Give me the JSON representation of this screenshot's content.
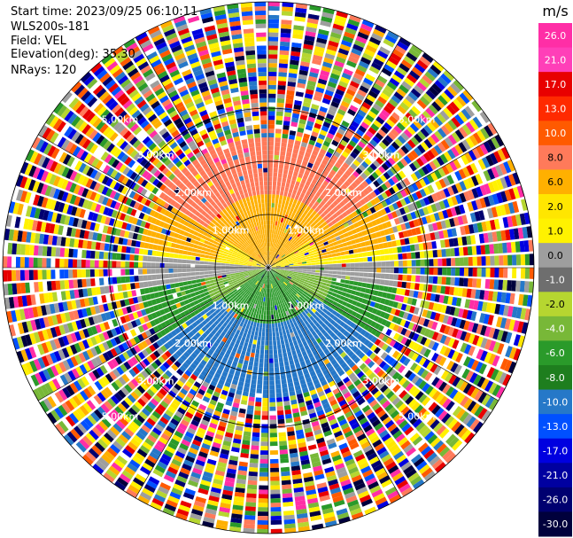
{
  "header": {
    "start_time": "Start time: 2023/09/25 06:10:11",
    "instrument": "WLS200s-181",
    "field": "Field: VEL",
    "elevation": "Elevation(deg): 35.30",
    "nrays": "NRays: 120"
  },
  "colorbar": {
    "unit": "m/s",
    "ticks": [
      "26.0",
      "21.0",
      "17.0",
      "13.0",
      "10.0",
      "8.0",
      "6.0",
      "2.0",
      "1.0",
      "0.0",
      "-1.0",
      "-2.0",
      "-4.0",
      "-6.0",
      "-8.0",
      "-10.0",
      "-13.0",
      "-17.0",
      "-21.0",
      "-26.0",
      "-30.0"
    ],
    "colors": [
      "#ff2ea6",
      "#ff3fb8",
      "#e80000",
      "#ff2a00",
      "#ff5a00",
      "#ff7a5a",
      "#ffb000",
      "#ffe600",
      "#fff200",
      "#9e9e9e",
      "#6e6e6e",
      "#b6d630",
      "#78b838",
      "#2a9a2a",
      "#1e7e1e",
      "#2678c8",
      "#0050ff",
      "#0000e0",
      "#0000a0",
      "#000070",
      "#00003c"
    ]
  },
  "ppi": {
    "ring_labels": [
      "1.00km",
      "2.00km",
      "3.00km",
      "5.00km"
    ],
    "inner_ring_labels": [
      "1.00km",
      "2.00km",
      "3.00km"
    ],
    "outer_ring_label": "5.00km"
  }
}
